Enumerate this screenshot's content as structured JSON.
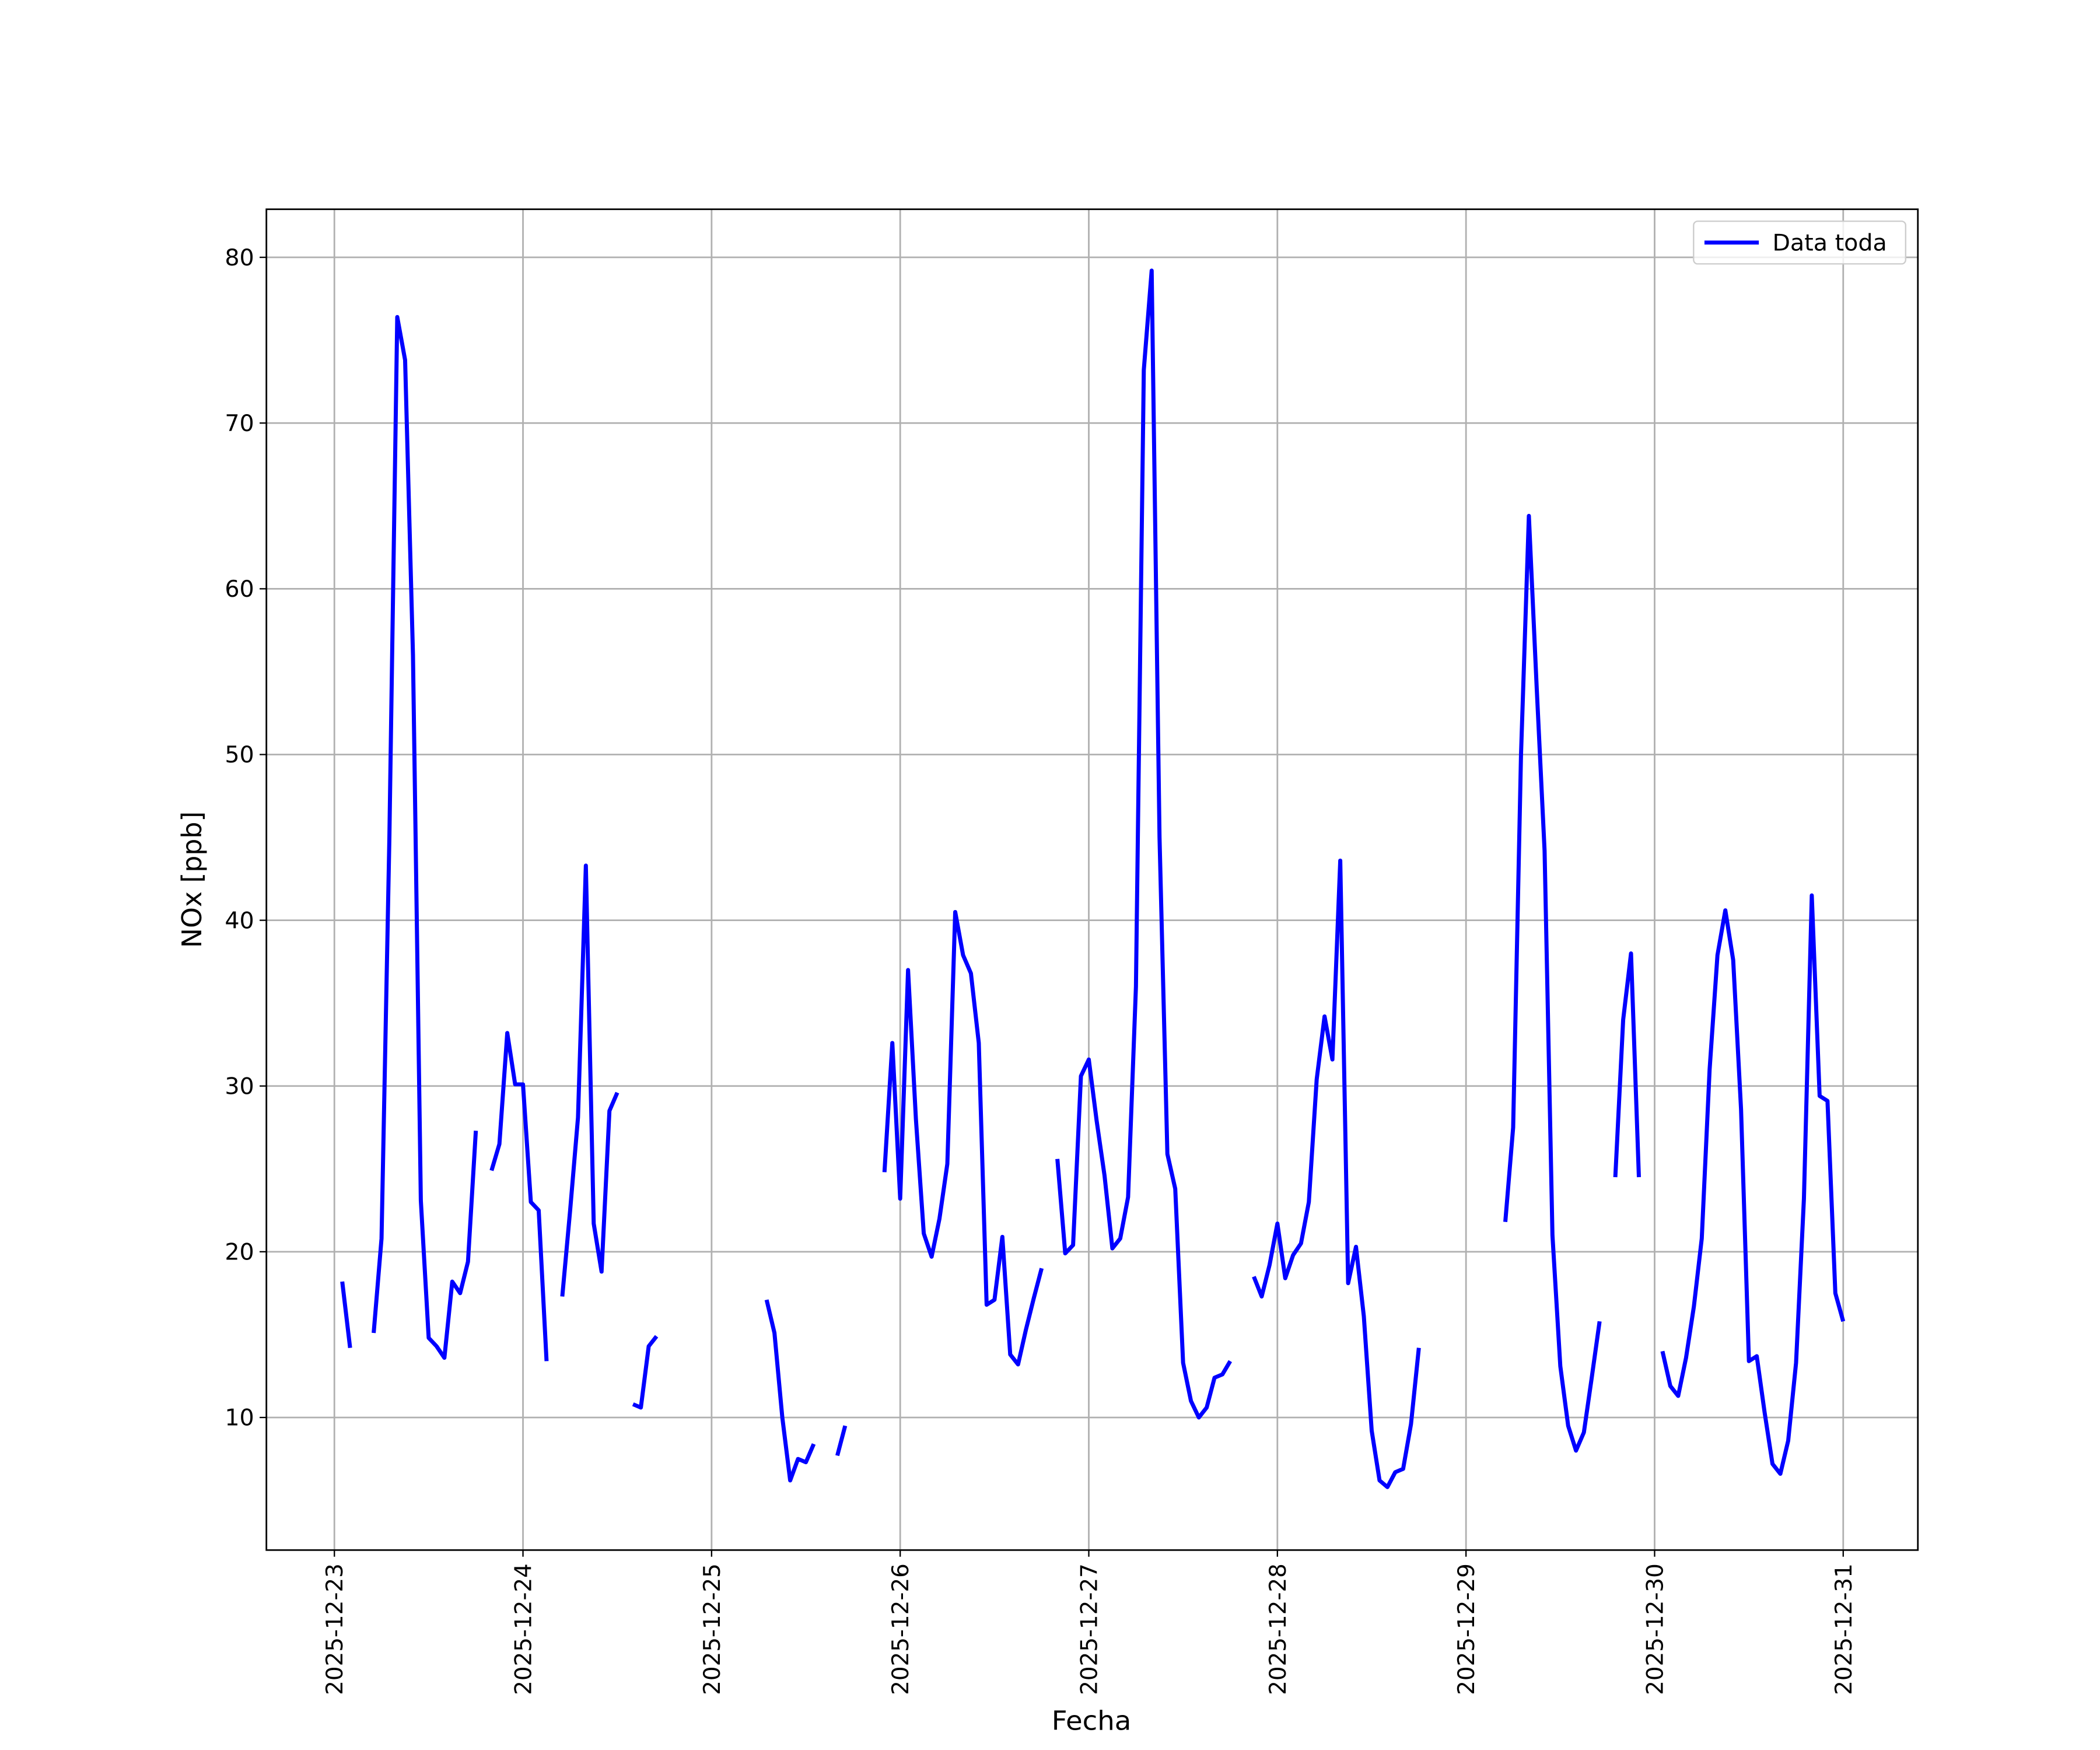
{
  "chart_data": {
    "type": "line",
    "xlabel": "Fecha",
    "ylabel": "NOx [ppb]",
    "x": [
      "2025-12-23 01:00",
      "2025-12-23 02:00",
      "2025-12-23 03:00",
      "2025-12-23 05:00",
      "2025-12-23 06:00",
      "2025-12-23 07:00",
      "2025-12-23 08:00",
      "2025-12-23 09:00",
      "2025-12-23 10:00",
      "2025-12-23 11:00",
      "2025-12-23 12:00",
      "2025-12-23 13:00",
      "2025-12-23 14:00",
      "2025-12-23 15:00",
      "2025-12-23 16:00",
      "2025-12-23 17:00",
      "2025-12-23 18:00",
      "2025-12-23 19:00",
      "2025-12-23 20:00",
      "2025-12-23 21:00",
      "2025-12-23 22:00",
      "2025-12-23 23:00",
      "2025-12-24 00:00",
      "2025-12-24 01:00",
      "2025-12-24 02:00",
      "2025-12-24 03:00",
      "2025-12-24 04:00",
      "2025-12-24 05:00",
      "2025-12-24 06:00",
      "2025-12-24 07:00",
      "2025-12-24 08:00",
      "2025-12-24 09:00",
      "2025-12-24 10:00",
      "2025-12-24 11:00",
      "2025-12-24 12:00",
      "2025-12-24 13:00",
      "2025-12-24 14:00",
      "2025-12-24 15:00",
      "2025-12-24 16:00",
      "2025-12-24 17:00",
      "2025-12-24 18:00",
      "2025-12-25 07:00",
      "2025-12-25 08:00",
      "2025-12-25 09:00",
      "2025-12-25 10:00",
      "2025-12-25 11:00",
      "2025-12-25 12:00",
      "2025-12-25 13:00",
      "2025-12-25 14:00",
      "2025-12-25 16:00",
      "2025-12-25 17:00",
      "2025-12-25 18:00",
      "2025-12-25 22:00",
      "2025-12-25 23:00",
      "2025-12-26 00:00",
      "2025-12-26 01:00",
      "2025-12-26 02:00",
      "2025-12-26 03:00",
      "2025-12-26 04:00",
      "2025-12-26 05:00",
      "2025-12-26 06:00",
      "2025-12-26 07:00",
      "2025-12-26 08:00",
      "2025-12-26 09:00",
      "2025-12-26 10:00",
      "2025-12-26 11:00",
      "2025-12-26 12:00",
      "2025-12-26 13:00",
      "2025-12-26 14:00",
      "2025-12-26 15:00",
      "2025-12-26 16:00",
      "2025-12-26 17:00",
      "2025-12-26 18:00",
      "2025-12-26 19:00",
      "2025-12-26 20:00",
      "2025-12-26 21:00",
      "2025-12-26 22:00",
      "2025-12-26 23:00",
      "2025-12-27 00:00",
      "2025-12-27 01:00",
      "2025-12-27 02:00",
      "2025-12-27 03:00",
      "2025-12-27 04:00",
      "2025-12-27 05:00",
      "2025-12-27 06:00",
      "2025-12-27 07:00",
      "2025-12-27 08:00",
      "2025-12-27 09:00",
      "2025-12-27 10:00",
      "2025-12-27 11:00",
      "2025-12-27 12:00",
      "2025-12-27 13:00",
      "2025-12-27 14:00",
      "2025-12-27 15:00",
      "2025-12-27 16:00",
      "2025-12-27 17:00",
      "2025-12-27 18:00",
      "2025-12-27 19:00",
      "2025-12-27 21:00",
      "2025-12-27 22:00",
      "2025-12-27 23:00",
      "2025-12-28 00:00",
      "2025-12-28 01:00",
      "2025-12-28 02:00",
      "2025-12-28 03:00",
      "2025-12-28 04:00",
      "2025-12-28 05:00",
      "2025-12-28 06:00",
      "2025-12-28 07:00",
      "2025-12-28 08:00",
      "2025-12-28 09:00",
      "2025-12-28 10:00",
      "2025-12-28 11:00",
      "2025-12-28 12:00",
      "2025-12-28 13:00",
      "2025-12-28 14:00",
      "2025-12-28 15:00",
      "2025-12-28 16:00",
      "2025-12-28 17:00",
      "2025-12-28 18:00",
      "2025-12-28 19:00",
      "2025-12-29 05:00",
      "2025-12-29 06:00",
      "2025-12-29 07:00",
      "2025-12-29 08:00",
      "2025-12-29 09:00",
      "2025-12-29 10:00",
      "2025-12-29 11:00",
      "2025-12-29 12:00",
      "2025-12-29 13:00",
      "2025-12-29 14:00",
      "2025-12-29 15:00",
      "2025-12-29 16:00",
      "2025-12-29 17:00",
      "2025-12-29 18:00",
      "2025-12-29 19:00",
      "2025-12-29 20:00",
      "2025-12-29 21:00",
      "2025-12-29 22:00",
      "2025-12-29 23:00",
      "2025-12-30 01:00",
      "2025-12-30 02:00",
      "2025-12-30 03:00",
      "2025-12-30 04:00",
      "2025-12-30 05:00",
      "2025-12-30 06:00",
      "2025-12-30 07:00",
      "2025-12-30 08:00",
      "2025-12-30 09:00",
      "2025-12-30 10:00",
      "2025-12-30 11:00",
      "2025-12-30 12:00",
      "2025-12-30 13:00",
      "2025-12-30 14:00",
      "2025-12-30 15:00",
      "2025-12-30 16:00",
      "2025-12-30 17:00",
      "2025-12-30 18:00",
      "2025-12-30 19:00",
      "2025-12-30 20:00",
      "2025-12-30 21:00",
      "2025-12-30 22:00",
      "2025-12-30 23:00",
      "2025-12-31 00:00"
    ],
    "series": [
      {
        "name": "Data toda",
        "color": "#0000ff",
        "values": [
          18.2,
          14.2,
          null,
          15.1,
          20.8,
          45,
          76.4,
          73.8,
          56,
          23.1,
          14.8,
          14.3,
          13.6,
          18.2,
          17.5,
          19.4,
          27.3,
          null,
          24.9,
          26.5,
          33.2,
          30.1,
          30.1,
          23,
          22.5,
          13.4,
          null,
          17.3,
          22.5,
          28.1,
          43.3,
          21.7,
          18.8,
          28.5,
          29.6,
          null,
          10.8,
          10.6,
          14.3,
          14.9,
          null,
          17.1,
          15.1,
          10,
          6.2,
          7.5,
          7.3,
          8.4,
          null,
          7.7,
          9.5,
          null,
          24.8,
          32.6,
          23.2,
          37,
          28,
          21.1,
          19.7,
          22,
          25.3,
          40.5,
          37.9,
          36.8,
          32.6,
          16.8,
          17.1,
          20.9,
          13.8,
          13.2,
          15.3,
          17.2,
          19,
          null,
          25.6,
          19.9,
          20.4,
          30.6,
          31.6,
          27.9,
          24.6,
          20.2,
          20.8,
          23.3,
          36,
          73.2,
          79.2,
          45,
          25.9,
          23.8,
          13.3,
          11,
          10,
          10.6,
          12.4,
          12.6,
          13.4,
          null,
          18.5,
          17.3,
          19.2,
          21.7,
          18.4,
          19.8,
          20.5,
          23,
          30.4,
          34.2,
          31.6,
          43.6,
          18.1,
          20.3,
          16.1,
          9.2,
          6.2,
          5.8,
          6.7,
          6.9,
          9.6,
          14.2,
          null,
          21.8,
          27.5,
          50,
          64.4,
          54,
          44.2,
          21,
          13.1,
          9.5,
          8,
          9.1,
          12.4,
          15.8,
          null,
          24.5,
          34,
          38,
          24.5,
          null,
          14,
          11.9,
          11.3,
          13.6,
          16.7,
          20.8,
          31,
          37.9,
          40.6,
          37.6,
          28.6,
          13.4,
          13.7,
          10.3,
          7.2,
          6.6,
          8.6,
          13.3,
          23.2,
          41.5,
          29.4,
          29.1,
          17.5,
          15.8
        ]
      }
    ],
    "xlim": [
      "2025-12-22 15:21",
      "2025-12-31 09:30"
    ],
    "xticks": [
      "2025-12-23",
      "2025-12-24",
      "2025-12-25",
      "2025-12-26",
      "2025-12-27",
      "2025-12-28",
      "2025-12-29",
      "2025-12-30",
      "2025-12-31"
    ],
    "ylim": [
      2.0,
      82.9
    ],
    "yticks": [
      10,
      20,
      30,
      40,
      50,
      60,
      70,
      80
    ],
    "grid": true,
    "legend": "upper right"
  }
}
